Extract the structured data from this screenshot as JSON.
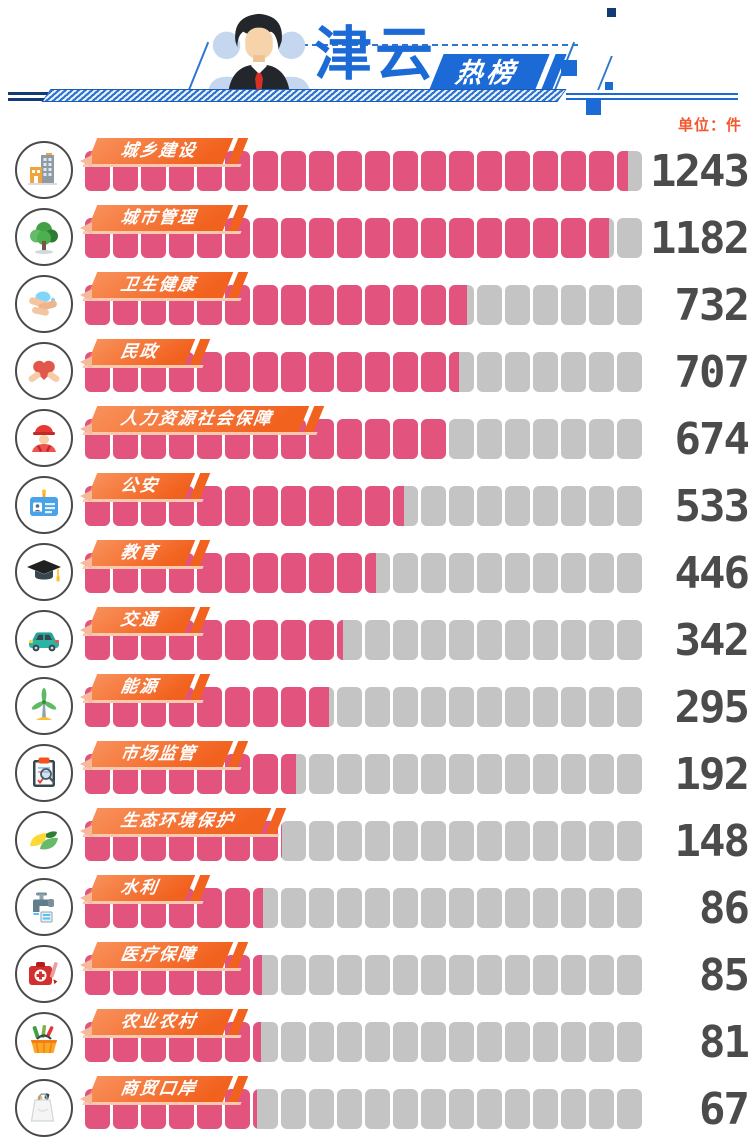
{
  "header": {
    "brand": "津云",
    "badge": "热榜"
  },
  "unit_label": "单位：件",
  "rows": [
    {
      "label": "城乡建设",
      "value": 1243,
      "icon": "buildings-icon"
    },
    {
      "label": "城市管理",
      "value": 1182,
      "icon": "tree-icon"
    },
    {
      "label": "卫生健康",
      "value": 732,
      "icon": "washing-hands-icon"
    },
    {
      "label": "民政",
      "value": 707,
      "icon": "heart-hands-icon"
    },
    {
      "label": "人力资源社会保障",
      "value": 674,
      "icon": "worker-icon"
    },
    {
      "label": "公安",
      "value": 533,
      "icon": "id-card-icon"
    },
    {
      "label": "教育",
      "value": 446,
      "icon": "graduation-cap-icon"
    },
    {
      "label": "交通",
      "value": 342,
      "icon": "car-icon"
    },
    {
      "label": "能源",
      "value": 295,
      "icon": "wind-turbine-icon"
    },
    {
      "label": "市场监管",
      "value": 192,
      "icon": "clipboard-magnifier-icon"
    },
    {
      "label": "生态环境保护",
      "value": 148,
      "icon": "leaves-icon"
    },
    {
      "label": "水利",
      "value": 86,
      "icon": "faucet-icon"
    },
    {
      "label": "医疗保障",
      "value": 85,
      "icon": "first-aid-kit-icon"
    },
    {
      "label": "农业农村",
      "value": 81,
      "icon": "basket-icon"
    },
    {
      "label": "商贸口岸",
      "value": 67,
      "icon": "shopping-bag-icon"
    }
  ],
  "chart_data": {
    "type": "bar",
    "orientation": "horizontal",
    "title": "津云热榜",
    "unit": "件",
    "categories": [
      "城乡建设",
      "城市管理",
      "卫生健康",
      "民政",
      "人力资源社会保障",
      "公安",
      "教育",
      "交通",
      "能源",
      "市场监管",
      "生态环境保护",
      "水利",
      "医疗保障",
      "农业农村",
      "商贸口岸"
    ],
    "values": [
      1243,
      1182,
      732,
      707,
      674,
      533,
      446,
      342,
      295,
      192,
      148,
      86,
      85,
      81,
      67
    ],
    "segments_per_bar": 20,
    "bar_fill_color": "#e2537e",
    "bar_empty_color": "#c4c4c4",
    "grid": false,
    "legend": false
  },
  "colors": {
    "accent_blue": "#1b6ad6",
    "navy": "#123a75",
    "bar_pink": "#e2537e",
    "bar_gray": "#c4c4c4",
    "ribbon_orange": "#f2621f",
    "ribbon_underline": "#f8c9ae",
    "value_gray": "#4b4b4b",
    "unit_orange": "#f4572e"
  }
}
